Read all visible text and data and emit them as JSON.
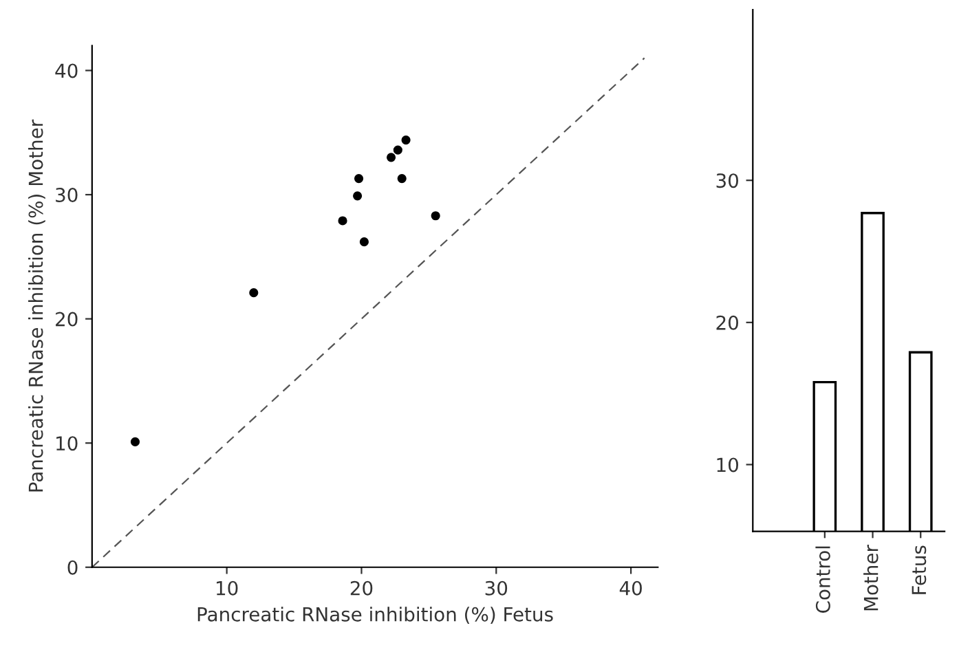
{
  "chart_data": [
    {
      "type": "scatter",
      "xlabel": "Pancreatic RNase inhibition (%) Fetus",
      "ylabel": "Pancreatic RNase inhibition (%) Mother",
      "xlim": [
        0,
        42
      ],
      "ylim": [
        0,
        42
      ],
      "xticks": [
        10,
        20,
        30,
        40
      ],
      "yticks": [
        0,
        10,
        20,
        30,
        40
      ],
      "grid": false,
      "marker": "circle",
      "series": [
        {
          "color": "#000000",
          "x": [
            3.2,
            12.0,
            18.6,
            19.7,
            19.8,
            20.2,
            22.2,
            22.7,
            23.3,
            23.0,
            25.5
          ],
          "values": [
            10.1,
            22.1,
            27.9,
            29.9,
            31.3,
            26.2,
            33.0,
            33.6,
            34.4,
            31.3,
            28.3
          ]
        },
        {
          "type": "line",
          "color": "#555555",
          "line_style": "dashed",
          "marker": "none",
          "x": [
            0,
            41
          ],
          "values": [
            0,
            41
          ]
        }
      ]
    },
    {
      "type": "bar",
      "categories": [
        "Control",
        "Mother",
        "Fetus"
      ],
      "values": [
        15.8,
        27.7,
        17.9
      ],
      "color": "#ffffff",
      "ylim": [
        5.3,
        42
      ],
      "yticks": [
        10,
        20,
        30
      ],
      "grid": false
    }
  ]
}
